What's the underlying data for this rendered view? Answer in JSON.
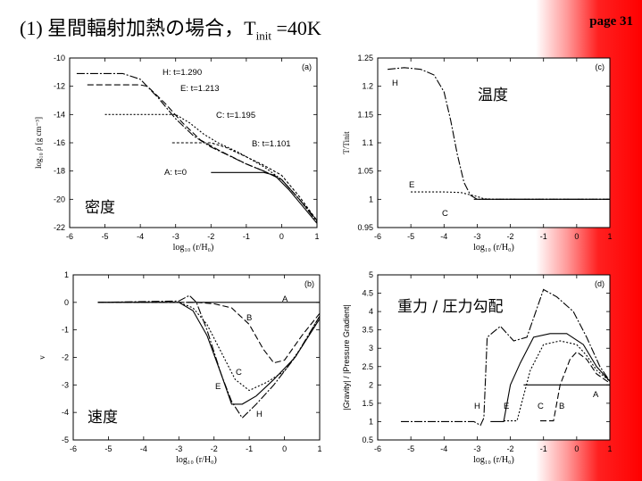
{
  "slide": {
    "title_prefix": "(1) 星間輻射加熱の場合，T",
    "title_sub": "init",
    "title_suffix": " =40K",
    "page": "page 31"
  },
  "chart_data": [
    {
      "type": "line",
      "panel_label": "(a)",
      "note": "密度",
      "ylabel": "log₁₀ ρ [g cm⁻³]",
      "xlabel": "log₁₀ (r/H₀)",
      "xlim": [
        -6,
        1
      ],
      "ylim": [
        -22,
        -10
      ],
      "xticks": [
        -6,
        -5,
        -4,
        -3,
        -2,
        -1,
        0,
        1
      ],
      "yticks": [
        -22,
        -20,
        -18,
        -16,
        -14,
        -12,
        -10
      ],
      "series": [
        {
          "name": "A: t=0",
          "dash": "",
          "points": [
            [
              -2,
              -18.1
            ],
            [
              -1,
              -18.1
            ],
            [
              -0.5,
              -18.1
            ],
            [
              -0.2,
              -18.3
            ],
            [
              0.2,
              -19.3
            ],
            [
              0.6,
              -20.5
            ],
            [
              1,
              -21.7
            ]
          ]
        },
        {
          "name": "B: t=1.101",
          "dash": "3,2",
          "points": [
            [
              -3.1,
              -16.0
            ],
            [
              -2,
              -16.0
            ],
            [
              -1.6,
              -16.3
            ],
            [
              -1,
              -17.0
            ],
            [
              -0.5,
              -17.6
            ],
            [
              0,
              -18.3
            ],
            [
              0.5,
              -19.8
            ],
            [
              1,
              -21.5
            ]
          ]
        },
        {
          "name": "C: t=1.195",
          "dash": "2,2",
          "points": [
            [
              -5,
              -14.0
            ],
            [
              -3,
              -14.0
            ],
            [
              -2.6,
              -14.6
            ],
            [
              -2.2,
              -15.4
            ],
            [
              -1.8,
              -16.0
            ],
            [
              -1.2,
              -16.7
            ],
            [
              -0.5,
              -17.7
            ],
            [
              0,
              -18.6
            ],
            [
              0.5,
              -20
            ],
            [
              1,
              -21.5
            ]
          ]
        },
        {
          "name": "E: t=1.213",
          "dash": "7,3",
          "points": [
            [
              -5.5,
              -11.9
            ],
            [
              -4,
              -11.9
            ],
            [
              -3.8,
              -12
            ],
            [
              -3.3,
              -13.2
            ],
            [
              -2.8,
              -14.6
            ],
            [
              -2.3,
              -15.8
            ],
            [
              -1.8,
              -16.5
            ],
            [
              -1,
              -17.5
            ],
            [
              -0.5,
              -18
            ],
            [
              0,
              -18.6
            ],
            [
              0.5,
              -20
            ],
            [
              1,
              -21.5
            ]
          ]
        },
        {
          "name": "H: t=1.290",
          "dash": "9,2,2,2",
          "points": [
            [
              -5.8,
              -11.1
            ],
            [
              -4.5,
              -11.1
            ],
            [
              -4,
              -11.5
            ],
            [
              -3.5,
              -12.8
            ],
            [
              -3,
              -14.3
            ],
            [
              -2.5,
              -15.5
            ],
            [
              -2,
              -16.3
            ],
            [
              -1.5,
              -16.9
            ],
            [
              -1,
              -17.5
            ],
            [
              -0.5,
              -18
            ],
            [
              0,
              -18.6
            ],
            [
              0.5,
              -20
            ],
            [
              1,
              -21.6
            ]
          ]
        }
      ],
      "annotations": [
        "H: t=1.290",
        "E: t=1.213",
        "C: t=1.195",
        "B: t=1.101",
        "A: t=0"
      ]
    },
    {
      "type": "line",
      "panel_label": "(c)",
      "note": "温度",
      "ylabel": "T/Tinit",
      "xlabel": "log₁₀ (r/H₀)",
      "xlim": [
        -6,
        1
      ],
      "ylim": [
        0.95,
        1.25
      ],
      "xticks": [
        -6,
        -5,
        -4,
        -3,
        -2,
        -1,
        0,
        1
      ],
      "yticks": [
        0.95,
        1,
        1.05,
        1.1,
        1.15,
        1.2,
        1.25
      ],
      "series": [
        {
          "name": "C",
          "dash": "",
          "points": [
            [
              -3.1,
              1.0
            ],
            [
              1,
              1.0
            ]
          ]
        },
        {
          "name": "E",
          "dash": "2,2",
          "points": [
            [
              -5,
              1.013
            ],
            [
              -4,
              1.013
            ],
            [
              -3.5,
              1.012
            ],
            [
              -3,
              1.005
            ],
            [
              -2.8,
              1.001
            ],
            [
              -2.5,
              1.0
            ],
            [
              1,
              1.0
            ]
          ]
        },
        {
          "name": "H",
          "dash": "9,2,2,2",
          "points": [
            [
              -5.7,
              1.23
            ],
            [
              -5.2,
              1.233
            ],
            [
              -4.7,
              1.23
            ],
            [
              -4.3,
              1.22
            ],
            [
              -4,
              1.19
            ],
            [
              -3.8,
              1.14
            ],
            [
              -3.6,
              1.08
            ],
            [
              -3.4,
              1.03
            ],
            [
              -3.2,
              1.007
            ],
            [
              -3,
              1.0
            ],
            [
              1,
              1.0
            ]
          ]
        }
      ],
      "annotations": [
        "H",
        "E",
        "C"
      ]
    },
    {
      "type": "line",
      "panel_label": "(b)",
      "note": "速度",
      "ylabel": "v",
      "xlabel": "log₁₀ (r/H₀)",
      "xlim": [
        -6,
        1
      ],
      "ylim": [
        -5,
        1
      ],
      "xticks": [
        -6,
        -5,
        -4,
        -3,
        -2,
        -1,
        0,
        1
      ],
      "yticks": [
        -5,
        -4,
        -3,
        -2,
        -1,
        0,
        1
      ],
      "series": [
        {
          "name": "A",
          "dash": "",
          "points": [
            [
              -2.8,
              0
            ],
            [
              1,
              0
            ]
          ]
        },
        {
          "name": "B",
          "dash": "7,3",
          "points": [
            [
              -5.3,
              0
            ],
            [
              -2.5,
              0
            ],
            [
              -2,
              -0.05
            ],
            [
              -1.5,
              -0.2
            ],
            [
              -1,
              -0.8
            ],
            [
              -0.6,
              -1.7
            ],
            [
              -0.3,
              -2.2
            ],
            [
              0,
              -2.1
            ],
            [
              0.5,
              -1.2
            ],
            [
              1,
              -0.4
            ]
          ]
        },
        {
          "name": "C",
          "dash": "2,2",
          "points": [
            [
              -5.3,
              0
            ],
            [
              -3,
              0
            ],
            [
              -2.6,
              -0.2
            ],
            [
              -2.2,
              -0.8
            ],
            [
              -1.8,
              -1.8
            ],
            [
              -1.4,
              -2.8
            ],
            [
              -1,
              -3.2
            ],
            [
              -0.5,
              -2.9
            ],
            [
              0,
              -2.5
            ],
            [
              0.5,
              -1.6
            ],
            [
              1,
              -0.5
            ]
          ]
        },
        {
          "name": "E",
          "dash": "",
          "points": [
            [
              -5.3,
              0
            ],
            [
              -3,
              0
            ],
            [
              -2.6,
              -0.3
            ],
            [
              -2.2,
              -1.2
            ],
            [
              -1.8,
              -2.6
            ],
            [
              -1.5,
              -3.7
            ],
            [
              -1.2,
              -3.7
            ],
            [
              -0.8,
              -3.4
            ],
            [
              -0.3,
              -2.8
            ],
            [
              0.3,
              -2
            ],
            [
              1,
              -0.6
            ]
          ]
        },
        {
          "name": "H",
          "dash": "9,2,2,2",
          "points": [
            [
              -5.3,
              0
            ],
            [
              -3,
              0.05
            ],
            [
              -2.7,
              0.25
            ],
            [
              -2.5,
              0
            ],
            [
              -2.2,
              -1.0
            ],
            [
              -1.8,
              -2.6
            ],
            [
              -1.5,
              -3.6
            ],
            [
              -1.2,
              -4.2
            ],
            [
              -0.8,
              -3.7
            ],
            [
              -0.3,
              -3
            ],
            [
              0.3,
              -2
            ],
            [
              1,
              -0.5
            ]
          ]
        }
      ],
      "annotations": [
        "A",
        "B",
        "C",
        "E",
        "H"
      ]
    },
    {
      "type": "line",
      "panel_label": "(d)",
      "note": "重力 / 圧力勾配",
      "ylabel": "|Gravity| / |Pressure Gradient|",
      "xlabel": "log₁₀ (r/H₀)",
      "xlim": [
        -6,
        1
      ],
      "ylim": [
        0.5,
        5
      ],
      "xticks": [
        -6,
        -5,
        -4,
        -3,
        -2,
        -1,
        0,
        1
      ],
      "yticks": [
        0.5,
        1,
        1.5,
        2,
        2.5,
        3,
        3.5,
        4,
        4.5,
        5
      ],
      "series": [
        {
          "name": "A",
          "dash": "",
          "points": [
            [
              -1.6,
              2.0
            ],
            [
              1,
              2.0
            ]
          ]
        },
        {
          "name": "B",
          "dash": "7,3",
          "points": [
            [
              -1.1,
              1.02
            ],
            [
              -0.7,
              1.02
            ],
            [
              -0.5,
              2.0
            ],
            [
              -0.2,
              2.7
            ],
            [
              0,
              2.9
            ],
            [
              0.3,
              2.7
            ],
            [
              0.6,
              2.3
            ],
            [
              1,
              2.05
            ]
          ]
        },
        {
          "name": "C",
          "dash": "2,2",
          "points": [
            [
              -2.2,
              1.02
            ],
            [
              -1.8,
              1.02
            ],
            [
              -1.4,
              2.4
            ],
            [
              -1.0,
              3.1
            ],
            [
              -0.5,
              3.2
            ],
            [
              0,
              3.1
            ],
            [
              0.3,
              2.8
            ],
            [
              0.6,
              2.4
            ],
            [
              1,
              2.1
            ]
          ]
        },
        {
          "name": "E",
          "dash": "",
          "points": [
            [
              -2.6,
              1.0
            ],
            [
              -2.2,
              1.0
            ],
            [
              -2,
              2.0
            ],
            [
              -1.7,
              2.6
            ],
            [
              -1.3,
              3.3
            ],
            [
              -0.8,
              3.4
            ],
            [
              -0.3,
              3.4
            ],
            [
              0.2,
              3.1
            ],
            [
              0.6,
              2.5
            ],
            [
              1,
              2.1
            ]
          ]
        },
        {
          "name": "H",
          "dash": "9,2,2,2",
          "points": [
            [
              -5.3,
              1.0
            ],
            [
              -3.1,
              1.0
            ],
            [
              -2.9,
              0.9
            ],
            [
              -2.8,
              1.1
            ],
            [
              -2.7,
              3.3
            ],
            [
              -2.3,
              3.6
            ],
            [
              -1.9,
              3.2
            ],
            [
              -1.5,
              3.3
            ],
            [
              -1,
              4.6
            ],
            [
              -0.6,
              4.4
            ],
            [
              -0.1,
              4.0
            ],
            [
              0.3,
              3.3
            ],
            [
              0.7,
              2.5
            ],
            [
              1,
              2.1
            ]
          ]
        }
      ],
      "annotations": [
        "H",
        "E",
        "C",
        "B",
        "A"
      ]
    }
  ]
}
